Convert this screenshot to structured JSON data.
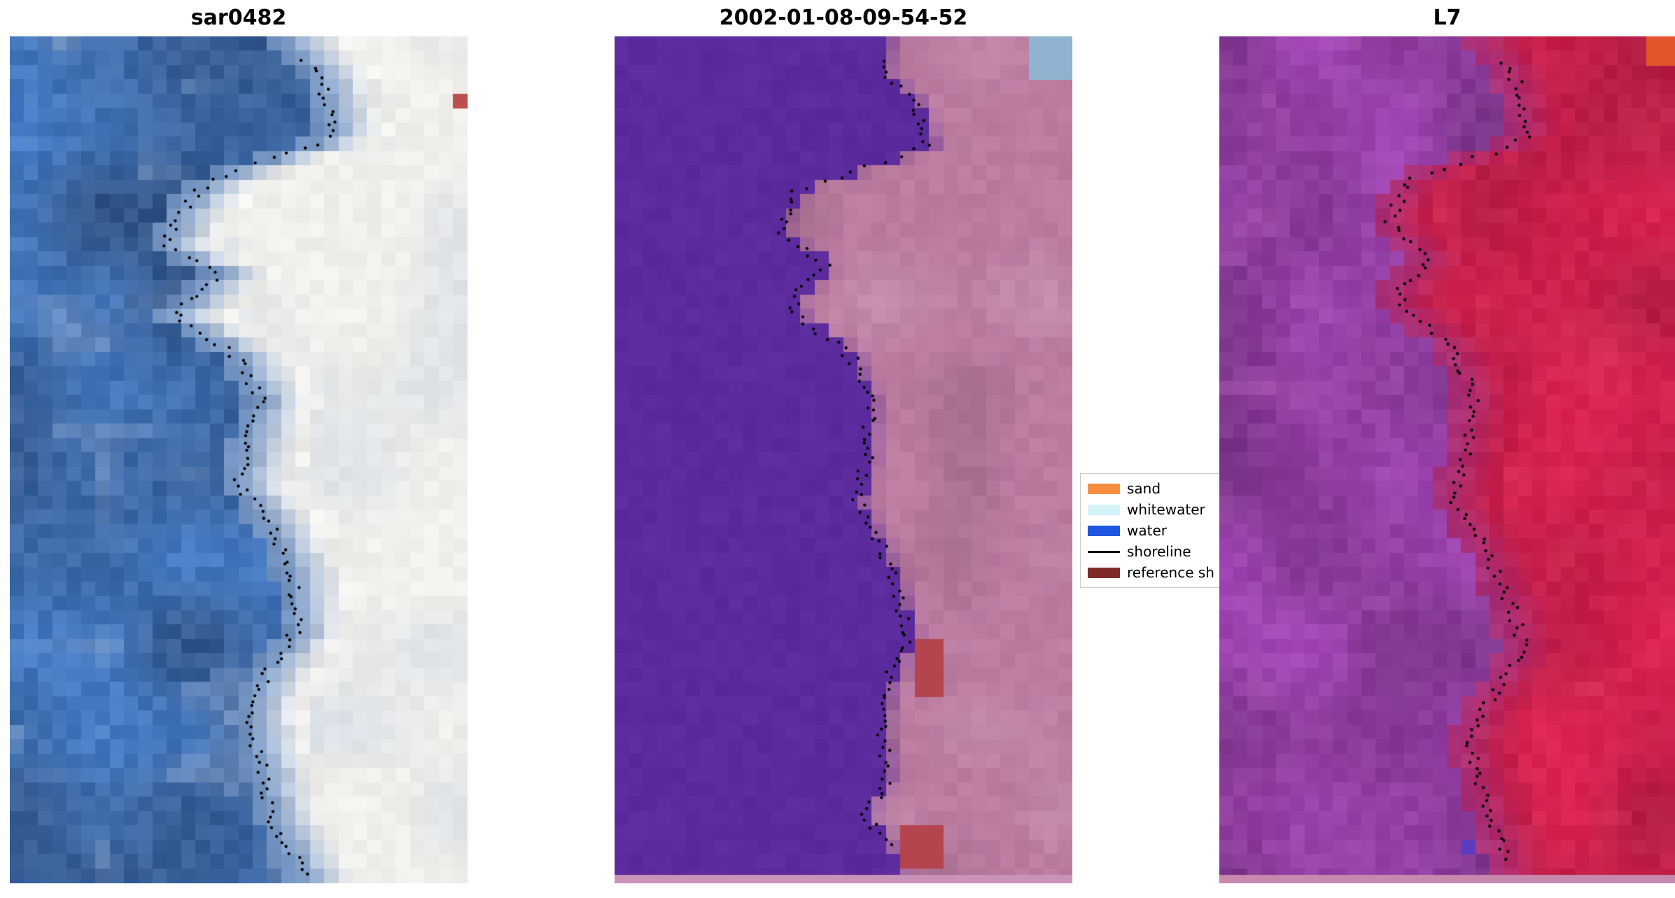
{
  "figure": {
    "background": "#ffffff"
  },
  "chart_data": {
    "type": "heatmap",
    "panels": [
      {
        "title": "sar0482",
        "style": "sar",
        "palette": {
          "water": "#3e6aa8",
          "land": "#f1f0ec"
        },
        "shoreline_span": [
          0.03,
          0.99
        ],
        "shoreline": [
          [
            0,
            0.6
          ],
          [
            0.05,
            0.68
          ],
          [
            0.12,
            0.71
          ],
          [
            0.17,
            0.44
          ],
          [
            0.21,
            0.37
          ],
          [
            0.25,
            0.34
          ],
          [
            0.28,
            0.46
          ],
          [
            0.33,
            0.36
          ],
          [
            0.38,
            0.5
          ],
          [
            0.43,
            0.55
          ],
          [
            0.48,
            0.52
          ],
          [
            0.53,
            0.5
          ],
          [
            0.58,
            0.57
          ],
          [
            0.64,
            0.62
          ],
          [
            0.7,
            0.63
          ],
          [
            0.75,
            0.56
          ],
          [
            0.8,
            0.52
          ],
          [
            0.86,
            0.55
          ],
          [
            0.92,
            0.57
          ],
          [
            0.97,
            0.62
          ],
          [
            1,
            0.65
          ]
        ],
        "features": [
          {
            "x": 0.96,
            "y": 0.075,
            "w": 0.03,
            "h": 0.013,
            "color": "#bc4e4e"
          }
        ]
      },
      {
        "title": "2002-01-08-09-54-52",
        "style": "classified",
        "palette": {
          "water": "#5c2c9e",
          "land": "#bb7ca0",
          "bottom_stripe": "#c993b8"
        },
        "shoreline_span": [
          0.03,
          0.955
        ],
        "shoreline": [
          [
            0,
            0.6
          ],
          [
            0.04,
            0.58
          ],
          [
            0.08,
            0.66
          ],
          [
            0.13,
            0.69
          ],
          [
            0.18,
            0.4
          ],
          [
            0.23,
            0.36
          ],
          [
            0.27,
            0.46
          ],
          [
            0.32,
            0.38
          ],
          [
            0.38,
            0.52
          ],
          [
            0.44,
            0.56
          ],
          [
            0.5,
            0.55
          ],
          [
            0.55,
            0.53
          ],
          [
            0.6,
            0.58
          ],
          [
            0.66,
            0.62
          ],
          [
            0.71,
            0.64
          ],
          [
            0.76,
            0.6
          ],
          [
            0.82,
            0.58
          ],
          [
            0.87,
            0.6
          ],
          [
            0.92,
            0.55
          ],
          [
            0.96,
            0.6
          ],
          [
            1,
            0.62
          ]
        ],
        "features": [
          {
            "x": 0.655,
            "y": 0.705,
            "w": 0.075,
            "h": 0.07,
            "color": "#b4454e"
          },
          {
            "x": 0.63,
            "y": 0.925,
            "w": 0.085,
            "h": 0.05,
            "color": "#b4454e"
          },
          {
            "x": 0.91,
            "y": 0,
            "w": 0.09,
            "h": 0.05,
            "color": "#8fb3d0"
          }
        ]
      },
      {
        "title": "L7",
        "style": "l7",
        "palette": {
          "water": "#8f3ea0",
          "land": "#c7204a",
          "bottom_stripe": "#c788ae"
        },
        "shoreline_span": [
          0.03,
          0.97
        ],
        "shoreline": [
          [
            0,
            0.58
          ],
          [
            0.05,
            0.65
          ],
          [
            0.12,
            0.68
          ],
          [
            0.17,
            0.42
          ],
          [
            0.22,
            0.37
          ],
          [
            0.26,
            0.46
          ],
          [
            0.31,
            0.39
          ],
          [
            0.37,
            0.52
          ],
          [
            0.43,
            0.56
          ],
          [
            0.49,
            0.54
          ],
          [
            0.55,
            0.52
          ],
          [
            0.61,
            0.59
          ],
          [
            0.67,
            0.64
          ],
          [
            0.73,
            0.67
          ],
          [
            0.79,
            0.58
          ],
          [
            0.84,
            0.55
          ],
          [
            0.9,
            0.58
          ],
          [
            0.95,
            0.62
          ],
          [
            1,
            0.64
          ]
        ],
        "features": [
          {
            "x": 0.93,
            "y": 0,
            "w": 0.07,
            "h": 0.028,
            "color": "#e4552e"
          },
          {
            "x": 0.545,
            "y": 0.952,
            "w": 0.022,
            "h": 0.018,
            "color": "#5b3ec0"
          }
        ]
      }
    ],
    "legend": {
      "items": [
        {
          "label": "sand",
          "type": "patch",
          "color": "#f68d3f"
        },
        {
          "label": "whitewater",
          "type": "patch",
          "color": "#d6f3f9"
        },
        {
          "label": "water",
          "type": "patch",
          "color": "#1e56e0"
        },
        {
          "label": "shoreline",
          "type": "line",
          "color": "#000000"
        },
        {
          "label": "reference sh",
          "type": "patch",
          "color": "#7e2a28"
        }
      ]
    }
  }
}
